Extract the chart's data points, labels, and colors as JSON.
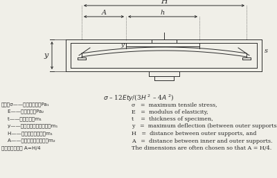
{
  "bg_color": "#f0efe8",
  "formula": "σ – 12Ety/(3H² – 4A²)",
  "chinese_lines": [
    "式中：σ——最大张应力，Pa₁",
    "    E——弹性模量，Pa₂",
    "    t——试样厚度，m₁",
    "    y——外支点间的最大挠度，m₁",
    "    H——外支点间的距离，m₁",
    "    A——内外支点间的距离，m₂",
    "通常选择尺寸使 A=H/4"
  ],
  "english_lines": [
    "σ   =  maximum tensile stress,",
    "E   =  modulus of elasticity,",
    "t    =  thickness of specimen,",
    "y   =  maximum deflection (between outer supports),",
    "H   =  distance between outer supports, and",
    "A   =  distance between inner and outer supports.",
    "The dimensions are often chosen so that A = H/4."
  ]
}
